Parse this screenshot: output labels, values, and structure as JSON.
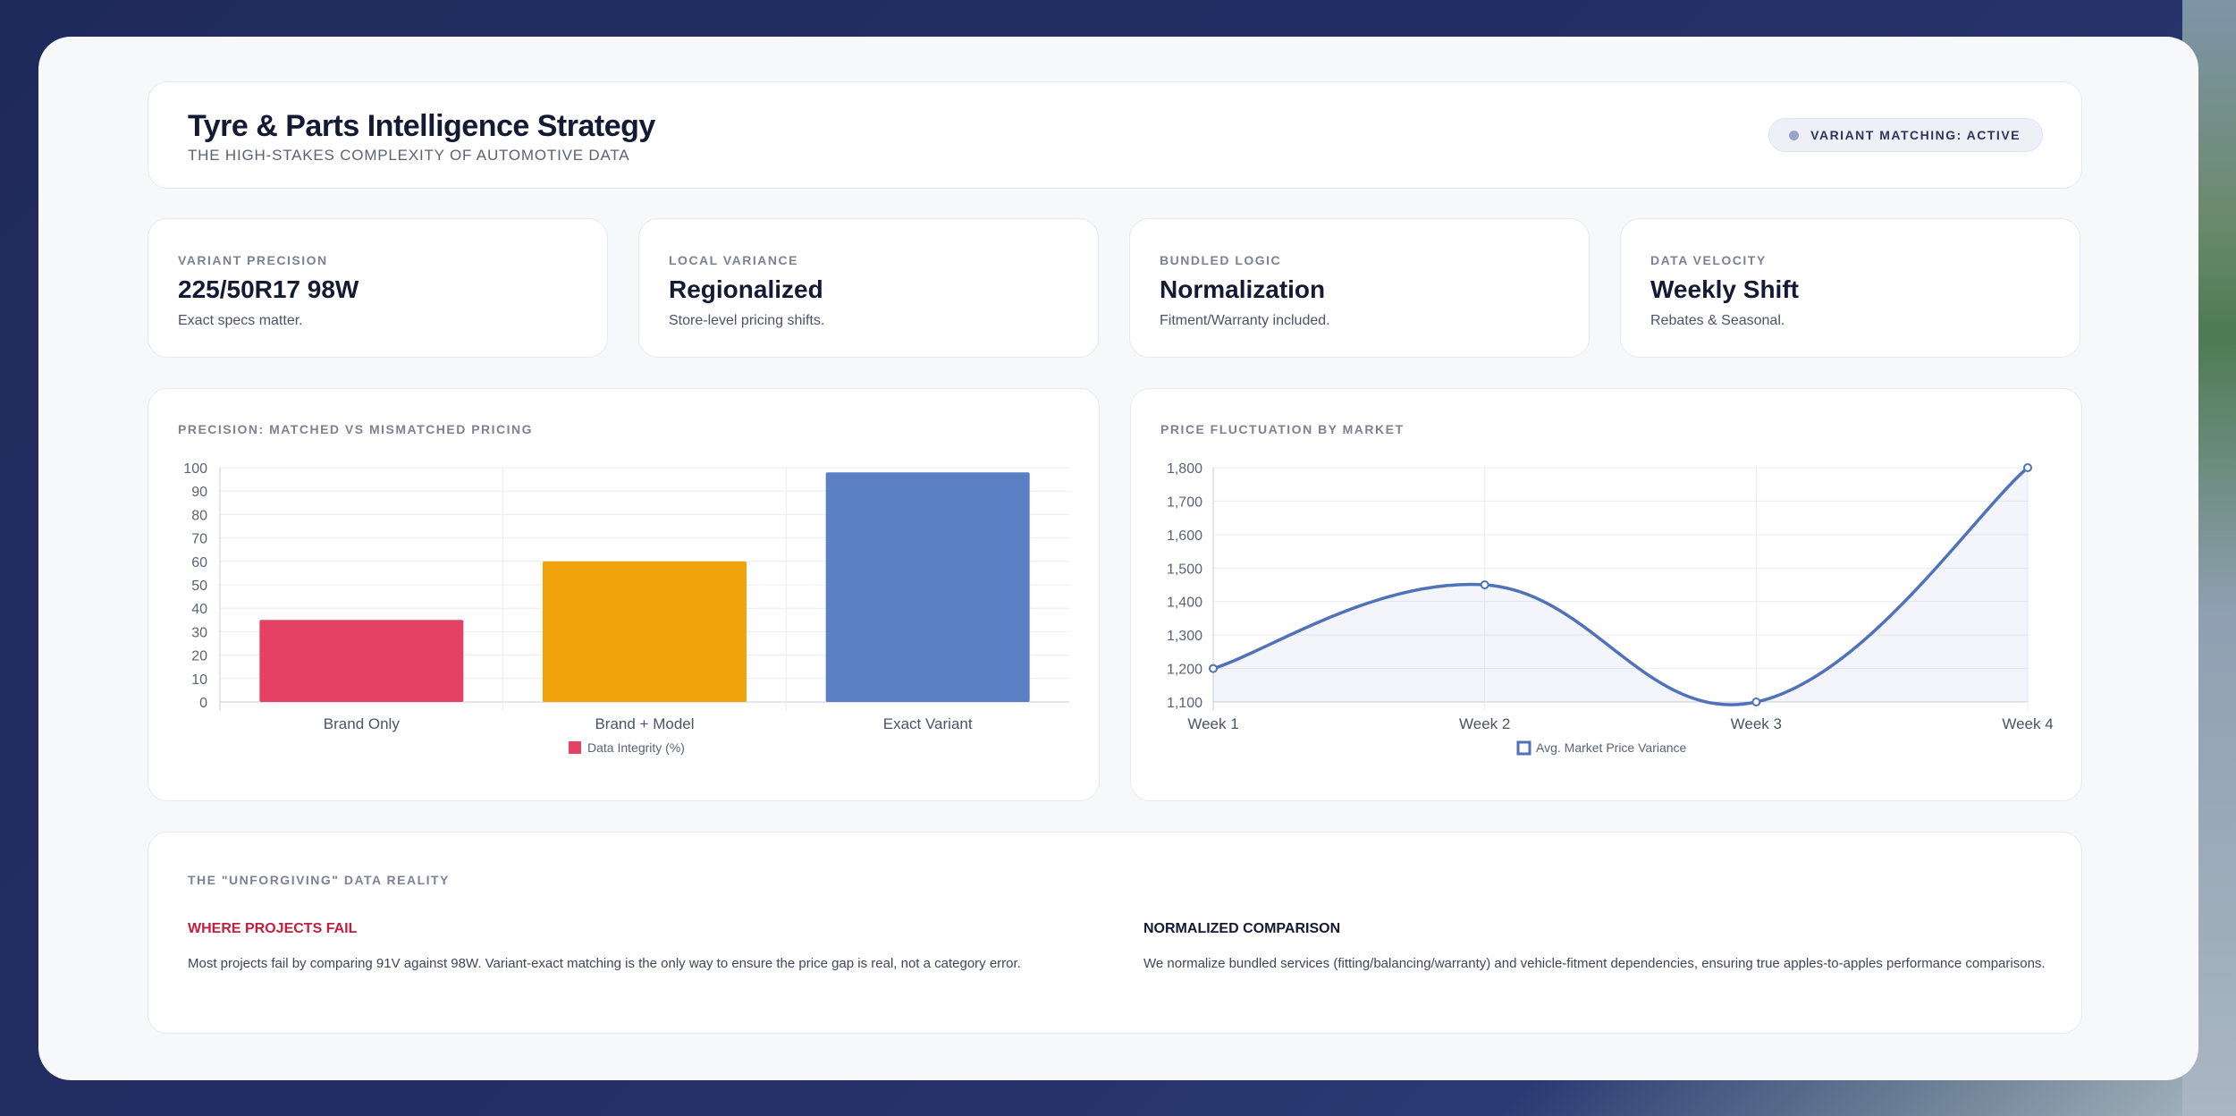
{
  "header": {
    "title": "Tyre & Parts Intelligence Strategy",
    "subtitle": "THE HIGH-STAKES COMPLEXITY OF AUTOMOTIVE DATA",
    "status": "VARIANT MATCHING: ACTIVE"
  },
  "kpis": [
    {
      "label": "VARIANT PRECISION",
      "value": "225/50R17 98W",
      "desc": "Exact specs matter."
    },
    {
      "label": "LOCAL VARIANCE",
      "value": "Regionalized",
      "desc": "Store-level pricing shifts."
    },
    {
      "label": "BUNDLED LOGIC",
      "value": "Normalization",
      "desc": "Fitment/Warranty included."
    },
    {
      "label": "DATA VELOCITY",
      "value": "Weekly Shift",
      "desc": "Rebates & Seasonal."
    }
  ],
  "charts": {
    "bar_label": "PRECISION: MATCHED VS MISMATCHED PRICING",
    "line_label": "PRICE FLUCTUATION BY MARKET"
  },
  "chart_data": [
    {
      "type": "bar",
      "title": "PRECISION: MATCHED VS MISMATCHED PRICING",
      "categories": [
        "Brand Only",
        "Brand + Model",
        "Exact Variant"
      ],
      "series": [
        {
          "name": "Data Integrity (%)",
          "values": [
            35,
            60,
            98
          ]
        }
      ],
      "colors": [
        "#e44264",
        "#f0a30a",
        "#5a7fc4"
      ],
      "ylim": [
        0,
        100
      ],
      "yticks": [
        "0",
        "10",
        "20",
        "30",
        "40",
        "50",
        "60",
        "70",
        "80",
        "90",
        "100"
      ],
      "grid": true,
      "legend": "bottom"
    },
    {
      "type": "line",
      "title": "PRICE FLUCTUATION BY MARKET",
      "categories": [
        "Week 1",
        "Week 2",
        "Week 3",
        "Week 4"
      ],
      "series": [
        {
          "name": "Avg. Market Price Variance",
          "values": [
            1200,
            1450,
            1100,
            1800
          ]
        }
      ],
      "color": "#4f72b8",
      "ylim": [
        1100,
        1800
      ],
      "yticks": [
        "1,100",
        "1,200",
        "1,300",
        "1,400",
        "1,500",
        "1,600",
        "1,700",
        "1,800"
      ],
      "grid": true,
      "legend": "bottom"
    }
  ],
  "bottom": {
    "label": "THE \"UNFORGIVING\" DATA REALITY",
    "fail_title": "WHERE PROJECTS FAIL",
    "fail_text": "Most projects fail by comparing 91V against 98W. Variant-exact matching is the only way to ensure the price gap is real, not a category error.",
    "norm_title": "NORMALIZED COMPARISON",
    "norm_text": "We normalize bundled services (fitting/balancing/warranty) and vehicle-fitment dependencies, ensuring true apples-to-apples performance comparisons."
  }
}
